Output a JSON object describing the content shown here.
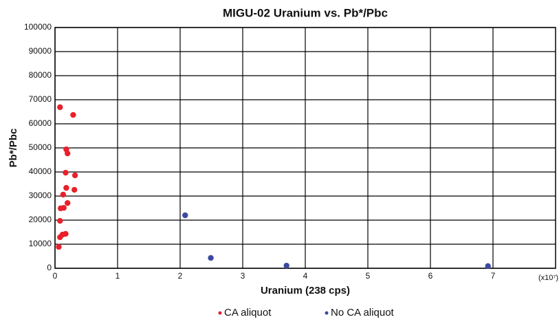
{
  "chart_data": {
    "type": "scatter",
    "title": "MIGU-02 Uranium vs. Pb*/Pbc",
    "x_label": "Uranium (238 cps)",
    "y_label": "Pb*/Pbc",
    "x_annotation": "(x10⁷)",
    "xlim": [
      0,
      8
    ],
    "xticks": [
      0,
      1,
      2,
      3,
      4,
      5,
      6,
      7
    ],
    "ylim": [
      0,
      100000
    ],
    "yticks": [
      0,
      10000,
      20000,
      30000,
      40000,
      50000,
      60000,
      70000,
      80000,
      90000,
      100000
    ],
    "grid": true,
    "legend": "bottom",
    "series": [
      {
        "name": "CA aliquot",
        "color": "#e8202a",
        "x": [
          0.08,
          0.29,
          0.18,
          0.2,
          0.17,
          0.32,
          0.18,
          0.31,
          0.13,
          0.2,
          0.09,
          0.14,
          0.08,
          0.17,
          0.12,
          0.08,
          0.06
        ],
        "values": [
          66900,
          63700,
          49400,
          47700,
          39700,
          38600,
          33400,
          32600,
          30600,
          27100,
          24900,
          25100,
          19700,
          14300,
          14000,
          12900,
          8900
        ]
      },
      {
        "name": "No CA aliquot",
        "color": "#3b4aa0",
        "x": [
          2.08,
          2.49,
          3.7,
          6.92
        ],
        "values": [
          22000,
          4300,
          1100,
          900
        ]
      }
    ]
  }
}
